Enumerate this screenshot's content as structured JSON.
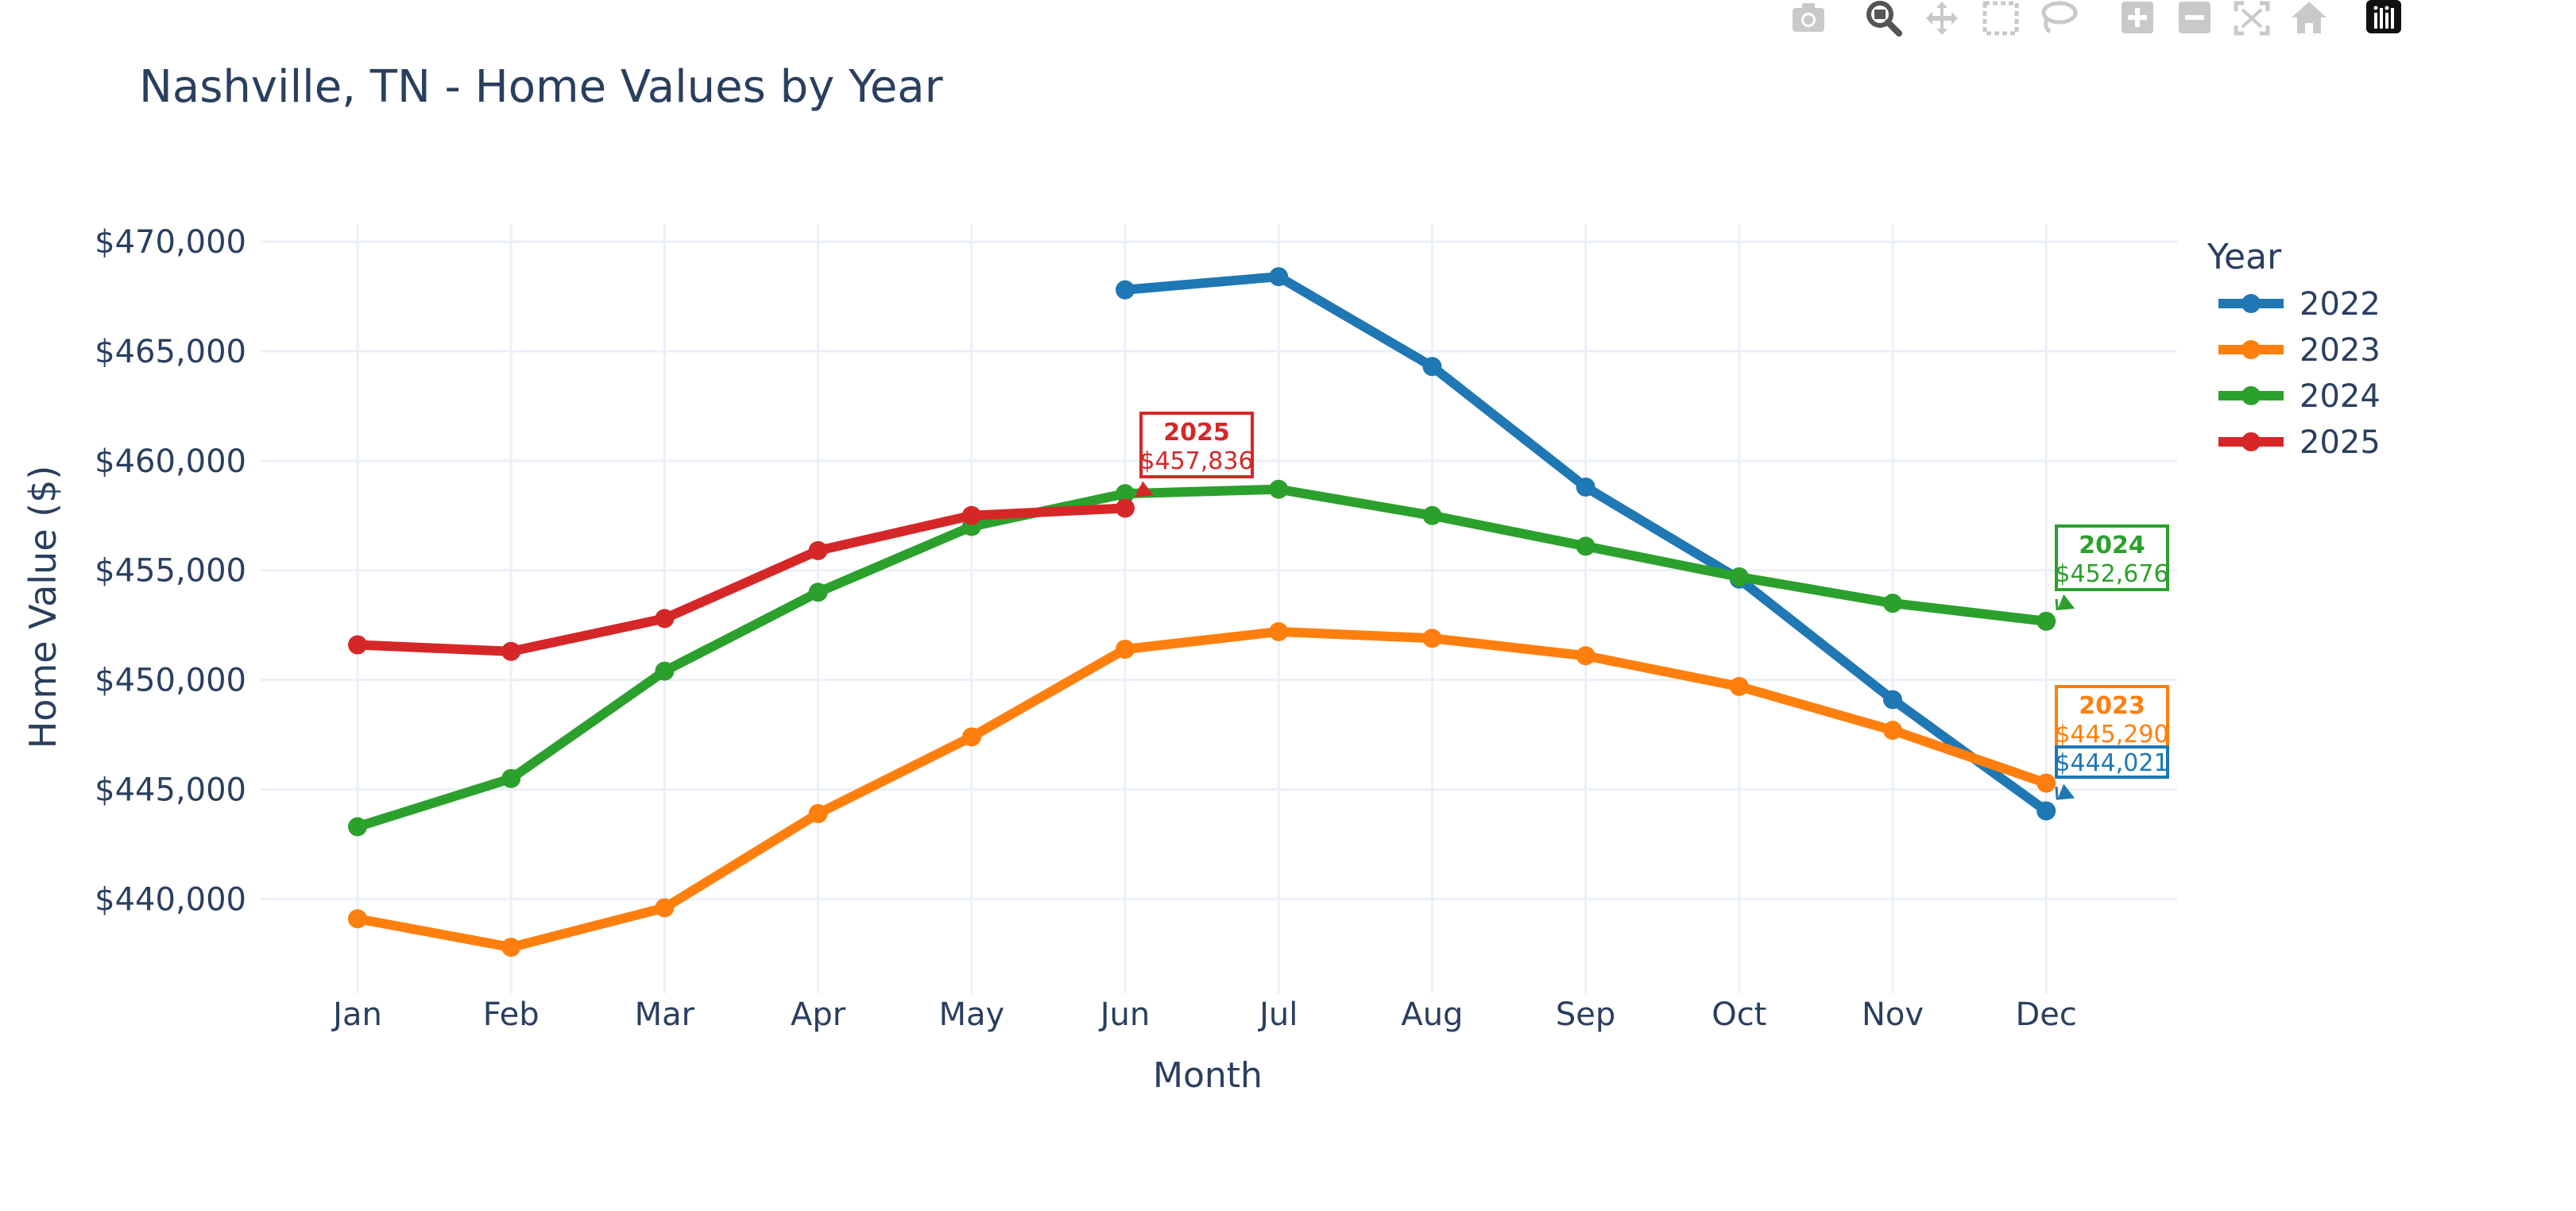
{
  "chart_data": {
    "type": "line",
    "title": "Nashville, TN - Home Values by Year",
    "xlabel": "Month",
    "ylabel": "Home Value ($)",
    "x": [
      "Jan",
      "Feb",
      "Mar",
      "Apr",
      "May",
      "Jun",
      "Jul",
      "Aug",
      "Sep",
      "Oct",
      "Nov",
      "Dec"
    ],
    "yticks": [
      440000,
      445000,
      450000,
      455000,
      460000,
      465000,
      470000
    ],
    "ytick_labels": [
      "$440,000",
      "$445,000",
      "$450,000",
      "$455,000",
      "$460,000",
      "$465,000",
      "$470,000"
    ],
    "ylim": [
      435700,
      470800
    ],
    "grid": true,
    "legend_title": "Year",
    "legend_position": "right",
    "series": [
      {
        "name": "2022",
        "color": "#1f77b4",
        "values": [
          null,
          null,
          null,
          null,
          null,
          467800,
          468400,
          464300,
          458800,
          454600,
          449100,
          444021
        ]
      },
      {
        "name": "2023",
        "color": "#ff7f0e",
        "values": [
          439100,
          437800,
          439600,
          443900,
          447400,
          451400,
          452200,
          451900,
          451100,
          449700,
          447700,
          445290
        ]
      },
      {
        "name": "2024",
        "color": "#2ca02c",
        "values": [
          443300,
          445500,
          450400,
          454000,
          457000,
          458500,
          458700,
          457500,
          456100,
          454700,
          453500,
          452676
        ]
      },
      {
        "name": "2025",
        "color": "#d62728",
        "values": [
          451600,
          451300,
          452800,
          455900,
          457500,
          457836,
          null,
          null,
          null,
          null,
          null,
          null
        ]
      }
    ],
    "annotations": [
      {
        "series": "2025",
        "month": "Jun",
        "year_label": "2025",
        "value_label": "$457,836"
      },
      {
        "series": "2024",
        "month": "Dec",
        "year_label": "2024",
        "value_label": "$452,676"
      },
      {
        "series": "2023",
        "month": "Dec",
        "year_label": "2023",
        "value_label": "$445,290"
      },
      {
        "series": "2022",
        "month": "Dec",
        "year_label": "2022",
        "value_label": "$444,021"
      }
    ]
  },
  "modebar": {
    "icons": [
      "camera-icon",
      "zoom-icon",
      "pan-icon",
      "box-select-icon",
      "lasso-icon",
      "zoom-in-icon",
      "zoom-out-icon",
      "autoscale-icon",
      "reset-axes-icon",
      "plotly-logo-icon"
    ]
  }
}
